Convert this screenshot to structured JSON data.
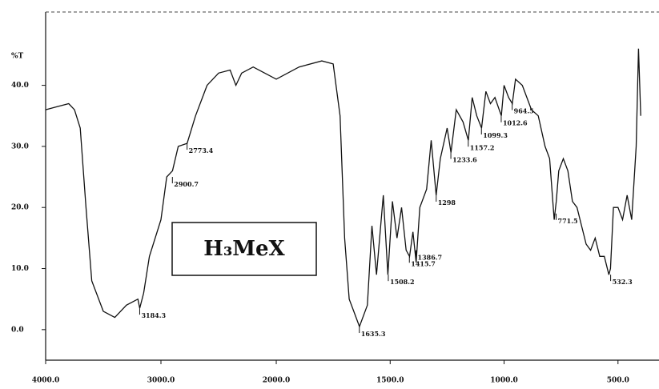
{
  "chart_data": {
    "type": "line",
    "y_label": "%T",
    "inset_label": "H₃MeX",
    "xlim": [
      4000,
      320
    ],
    "x_scale_change": 2000,
    "ylim": [
      -5,
      52
    ],
    "xticks": [
      {
        "value": 4000,
        "label": "4000.0"
      },
      {
        "value": 3000,
        "label": "3000.0"
      },
      {
        "value": 2000,
        "label": "2000.0"
      },
      {
        "value": 1500,
        "label": "1500.0"
      },
      {
        "value": 1000,
        "label": "1000.0"
      },
      {
        "value": 500,
        "label": "500.0"
      }
    ],
    "yticks": [
      {
        "value": 0,
        "label": "0.0"
      },
      {
        "value": 10,
        "label": "10.0"
      },
      {
        "value": 20,
        "label": "20.0"
      },
      {
        "value": 30,
        "label": "30.0"
      },
      {
        "value": 40,
        "label": "40.0"
      }
    ],
    "series": [
      {
        "color": "#111111",
        "x": [
          4000,
          3900,
          3800,
          3750,
          3700,
          3650,
          3600,
          3500,
          3400,
          3300,
          3200,
          3184,
          3150,
          3100,
          3000,
          2950,
          2900,
          2850,
          2773,
          2700,
          2600,
          2500,
          2400,
          2350,
          2300,
          2200,
          2100,
          2000,
          1900,
          1800,
          1750,
          1720,
          1700,
          1680,
          1660,
          1635,
          1600,
          1580,
          1560,
          1530,
          1510,
          1490,
          1470,
          1450,
          1430,
          1415,
          1400,
          1386,
          1370,
          1340,
          1320,
          1298,
          1280,
          1250,
          1233,
          1210,
          1180,
          1157,
          1140,
          1120,
          1099,
          1080,
          1060,
          1040,
          1012,
          1000,
          980,
          964,
          950,
          920,
          880,
          850,
          820,
          800,
          780,
          771,
          760,
          740,
          720,
          700,
          680,
          660,
          640,
          620,
          600,
          580,
          560,
          540,
          533,
          520,
          500,
          480,
          460,
          440,
          420,
          410,
          400
        ],
        "values": [
          36,
          36.5,
          37,
          36,
          33,
          20,
          8,
          3,
          2,
          4,
          5,
          3.5,
          6,
          12,
          18,
          25,
          26,
          30,
          30.5,
          35,
          40,
          42,
          42.5,
          40,
          42,
          43,
          42,
          41,
          43,
          44,
          43.5,
          35,
          15,
          5,
          3,
          0.5,
          4,
          17,
          9,
          22,
          9,
          21,
          15,
          20,
          13,
          12,
          16,
          11,
          20,
          23,
          31,
          22,
          28,
          33,
          29,
          36,
          34,
          31,
          38,
          35,
          33,
          39,
          37,
          38,
          35,
          40,
          38,
          37,
          41,
          40,
          36,
          35,
          30,
          28,
          18,
          21,
          26,
          28,
          26,
          21,
          20,
          17,
          14,
          13,
          15,
          12,
          12,
          9,
          10,
          20,
          20,
          18,
          22,
          18,
          30,
          46,
          35
        ]
      }
    ],
    "annotations": [
      {
        "x": 3184.3,
        "y": 3.5
      },
      {
        "x": 2900.7,
        "y": 25
      },
      {
        "x": 2773.4,
        "y": 30.5
      },
      {
        "x": 1635.3,
        "y": 0.5
      },
      {
        "x": 1508.2,
        "y": 9
      },
      {
        "x": 1415.7,
        "y": 12
      },
      {
        "x": 1386.7,
        "y": 13
      },
      {
        "x": 1298.0,
        "y": 22
      },
      {
        "x": 1233.6,
        "y": 29
      },
      {
        "x": 1157.2,
        "y": 31
      },
      {
        "x": 1099.3,
        "y": 33
      },
      {
        "x": 1012.6,
        "y": 35
      },
      {
        "x": 964.5,
        "y": 37
      },
      {
        "x": 771.5,
        "y": 19
      },
      {
        "x": 532.3,
        "y": 9
      }
    ]
  }
}
